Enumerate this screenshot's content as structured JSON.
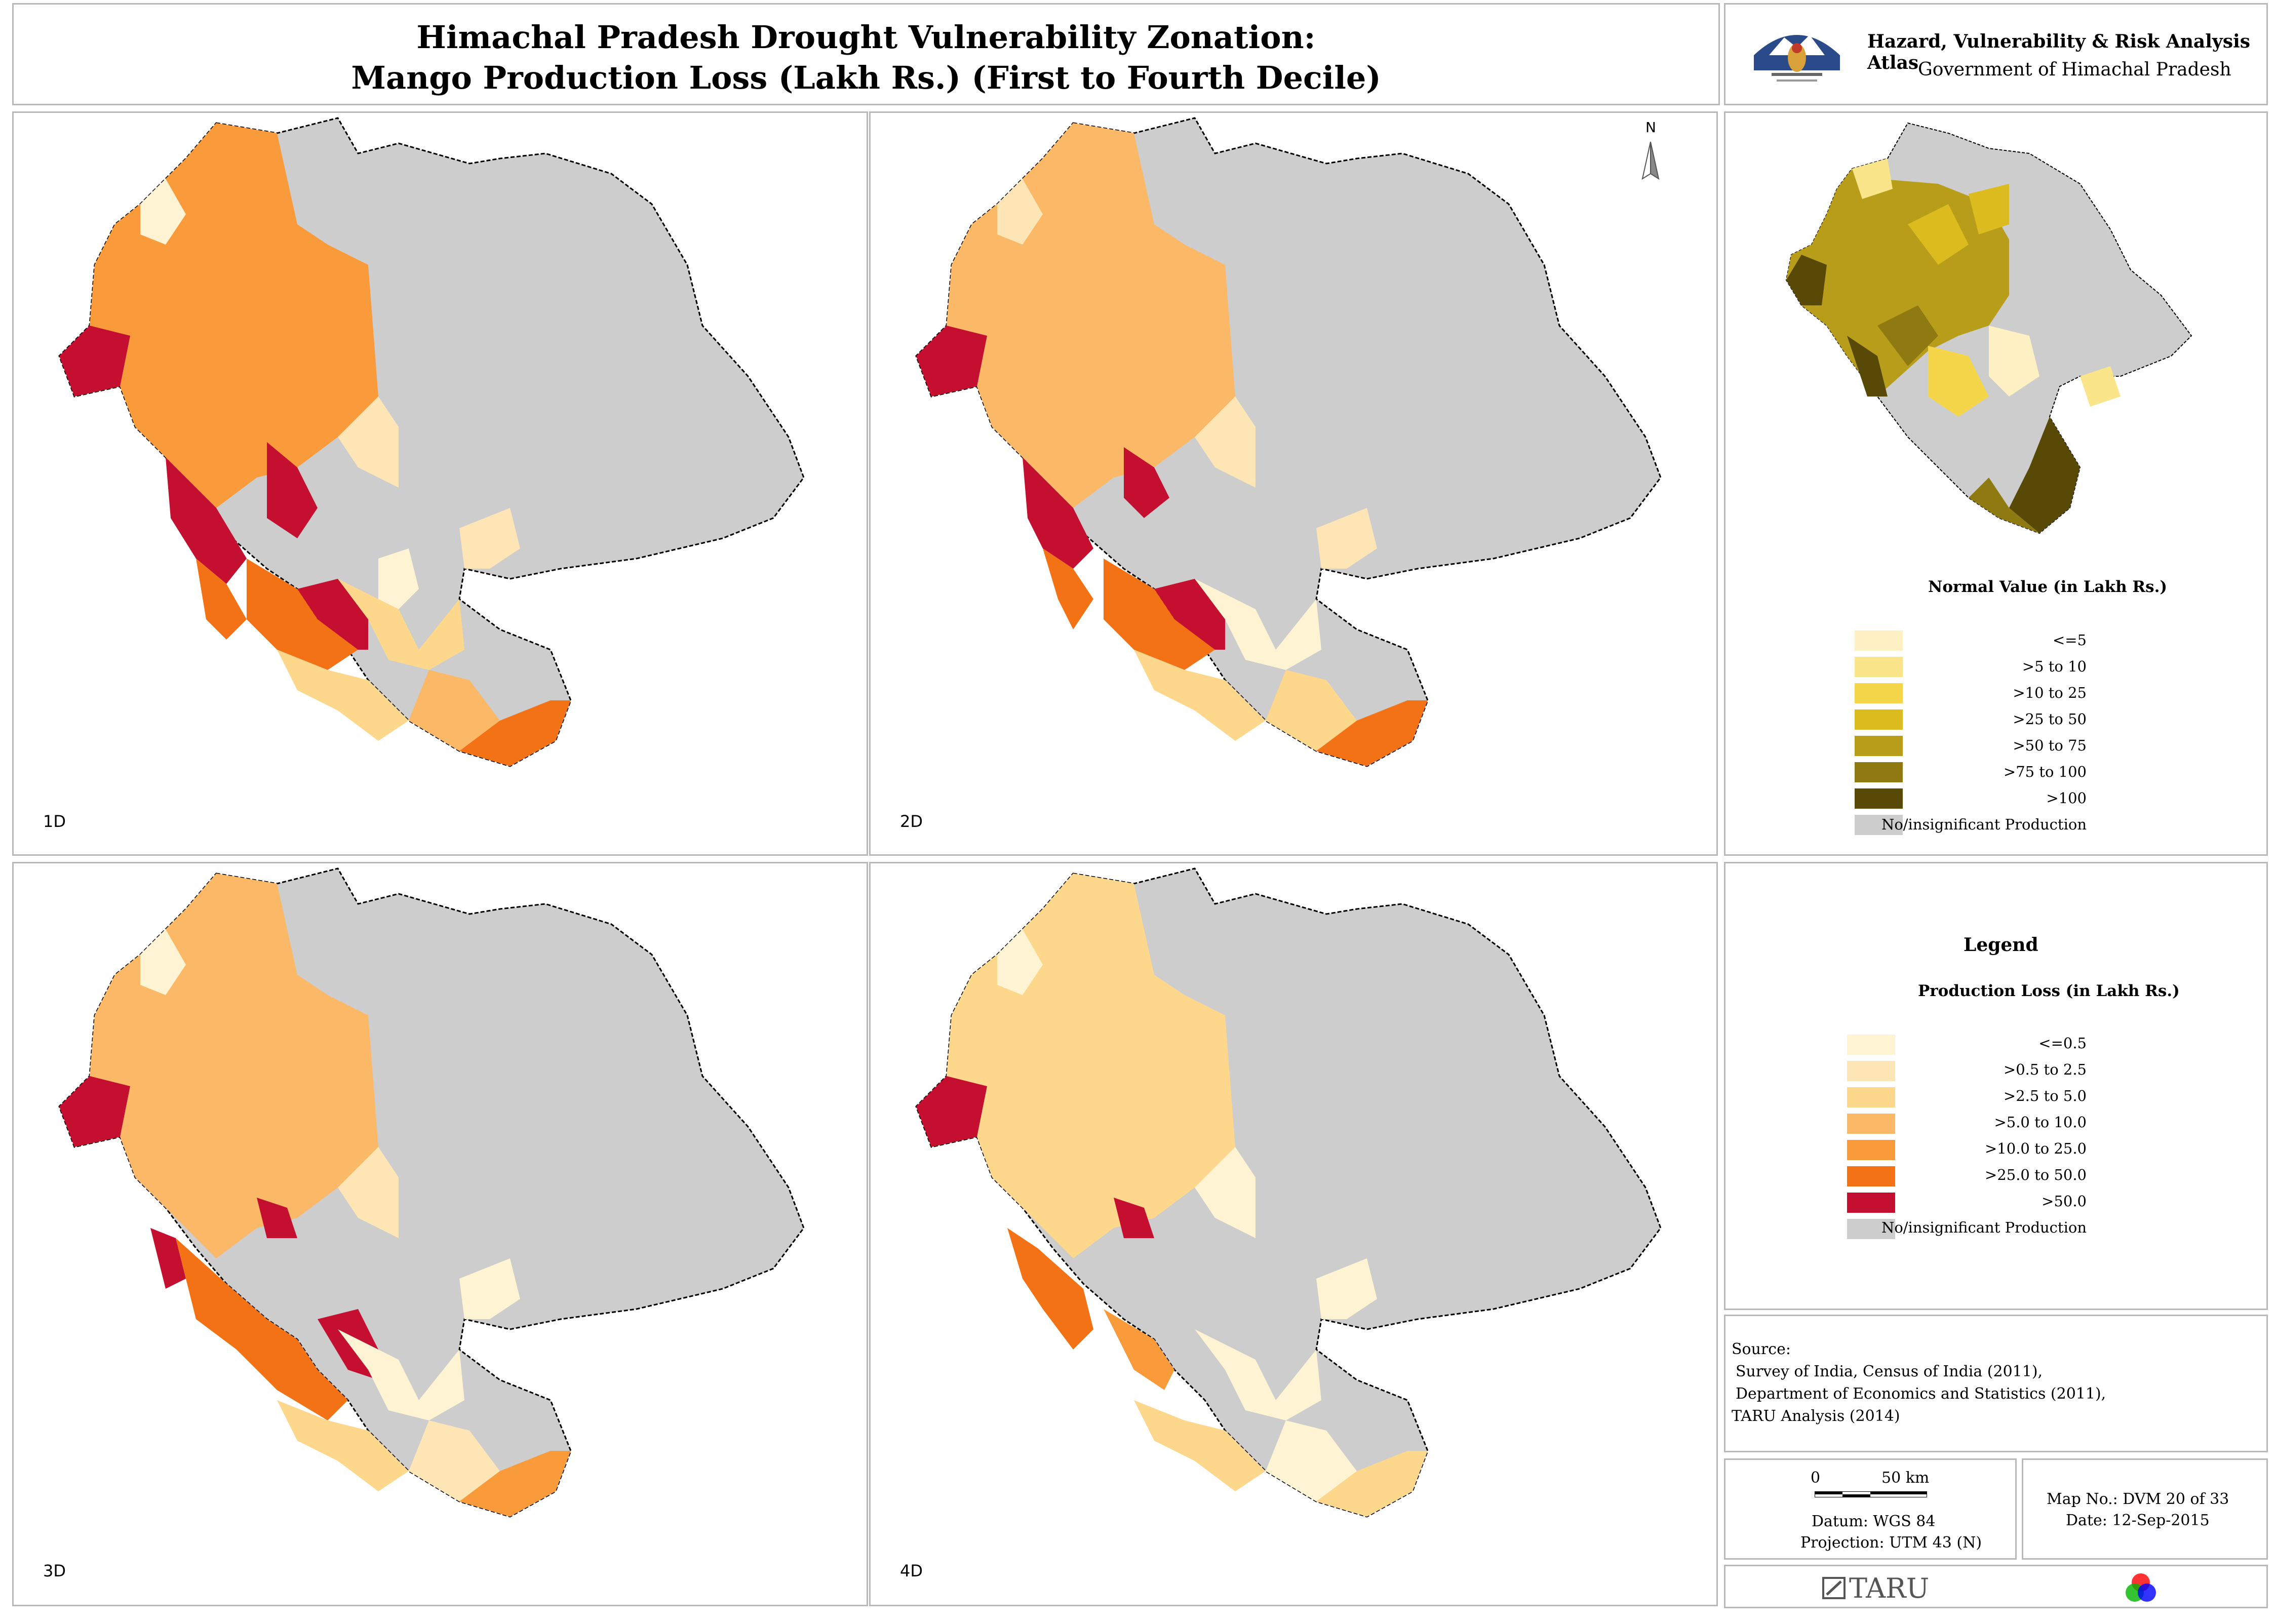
{
  "title": {
    "line1": "Himachal Pradesh Drought Vulnerability Zonation:",
    "line2": "Mango Production Loss (Lakh Rs.) (First to Fourth Decile)"
  },
  "header": {
    "atlas_title": "Hazard, Vulnerability & Risk Analysis Atlas",
    "government": "Government of Himachal Pradesh",
    "emblem_icon": "hp-government-emblem"
  },
  "maps": [
    {
      "label": "1D"
    },
    {
      "label": "2D"
    },
    {
      "label": "3D"
    },
    {
      "label": "4D"
    }
  ],
  "north_arrow": {
    "label": "N"
  },
  "inset": {
    "legend_title": "Normal Value (in Lakh Rs.)",
    "classes": [
      {
        "label": "<=5",
        "color": "#fdf0c3"
      },
      {
        "label": ">5 to 10",
        "color": "#fbe58a"
      },
      {
        "label": ">10 to 25",
        "color": "#f5d64a"
      },
      {
        "label": ">25 to 50",
        "color": "#dcbb1e"
      },
      {
        "label": ">50 to 75",
        "color": "#b89d1a"
      },
      {
        "label": ">75 to 100",
        "color": "#8f7a12"
      },
      {
        "label": ">100",
        "color": "#584a06"
      },
      {
        "label": "No/insignificant Production",
        "color": "#cdcdcd"
      }
    ]
  },
  "legend": {
    "heading": "Legend",
    "title": "Production Loss (in Lakh Rs.)",
    "classes": [
      {
        "label": "<=0.5",
        "color": "#fef3d2"
      },
      {
        "label": ">0.5 to 2.5",
        "color": "#fde5b5"
      },
      {
        "label": ">2.5 to 5.0",
        "color": "#fdd88c"
      },
      {
        "label": ">5.0 to 10.0",
        "color": "#fbb866"
      },
      {
        "label": ">10.0 to 25.0",
        "color": "#f99b3b"
      },
      {
        "label": ">25.0 to 50.0",
        "color": "#f47216"
      },
      {
        "label": ">50.0",
        "color": "#c40f30"
      },
      {
        "label": "No/insignificant Production",
        "color": "#cdcdcd"
      }
    ]
  },
  "source": {
    "heading": "Source:",
    "lines": [
      "Survey of India, Census of India (2011),",
      "Department of Economics and Statistics (2011),",
      "TARU Analysis (2014)"
    ]
  },
  "scale": {
    "zero": "0",
    "end": "50 km",
    "datum": "Datum: WGS 84",
    "projection": "Projection: UTM 43 (N)"
  },
  "mapinfo": {
    "map_no": "Map No.: DVM 20 of 33",
    "date": "Date: 12-Sep-2015"
  },
  "footer": {
    "brand": "TARU",
    "brand_icon": "taru-logo-icon",
    "rgb_icon": "rgb-circles-icon"
  }
}
